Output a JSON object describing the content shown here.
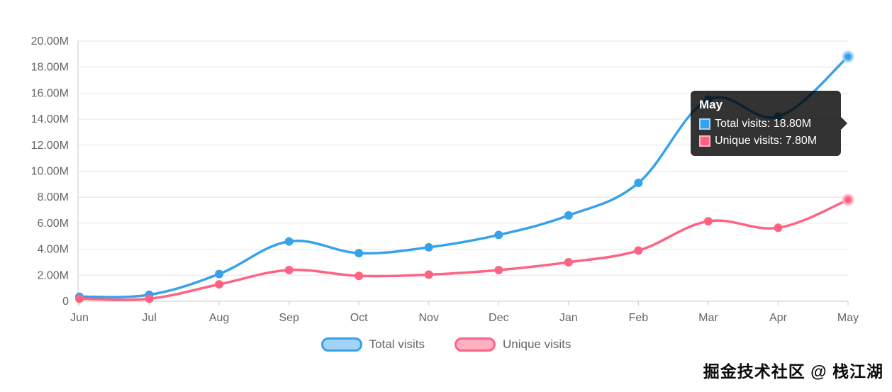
{
  "chart_data": {
    "type": "line",
    "categories": [
      "Jun",
      "Jul",
      "Aug",
      "Sep",
      "Oct",
      "Nov",
      "Dec",
      "Jan",
      "Feb",
      "Mar",
      "Apr",
      "May"
    ],
    "series": [
      {
        "name": "Total visits",
        "color": "#36a2eb",
        "legend_fill": "#a3d3f5",
        "values": [
          0.35,
          0.5,
          2.1,
          4.6,
          3.7,
          4.15,
          5.1,
          6.6,
          9.1,
          15.5,
          14.2,
          18.8
        ]
      },
      {
        "name": "Unique visits",
        "color": "#ff6384",
        "legend_fill": "#ffafc2",
        "values": [
          0.2,
          0.2,
          1.3,
          2.4,
          1.95,
          2.05,
          2.4,
          3.0,
          3.9,
          6.15,
          5.65,
          7.8
        ]
      }
    ],
    "ylim": [
      0,
      20
    ],
    "ytick_step": 2,
    "ytick_labels": [
      "0",
      "2.00M",
      "4.00M",
      "6.00M",
      "8.00M",
      "10.00M",
      "12.00M",
      "14.00M",
      "16.00M",
      "18.00M",
      "20.00M"
    ],
    "grid": true,
    "legend_position": "bottom",
    "value_unit": "M",
    "title": "",
    "xlabel": "",
    "ylabel": ""
  },
  "tooltip": {
    "title": "May",
    "rows": [
      {
        "text": "Total visits: 18.80M",
        "box_fill": "#36a2eb",
        "box_border": "#a3d3f5"
      },
      {
        "text": "Unique visits: 7.80M",
        "box_fill": "#ff6384",
        "box_border": "#ffafc2"
      }
    ]
  },
  "colors": {
    "grid_line": "#e6e6e6",
    "axis_line": "#c9c9c9",
    "tick_text": "#666666",
    "tooltip_bg": "rgba(0,0,0,0.8)"
  },
  "watermark": "掘金技术社区 @ 栈江湖"
}
